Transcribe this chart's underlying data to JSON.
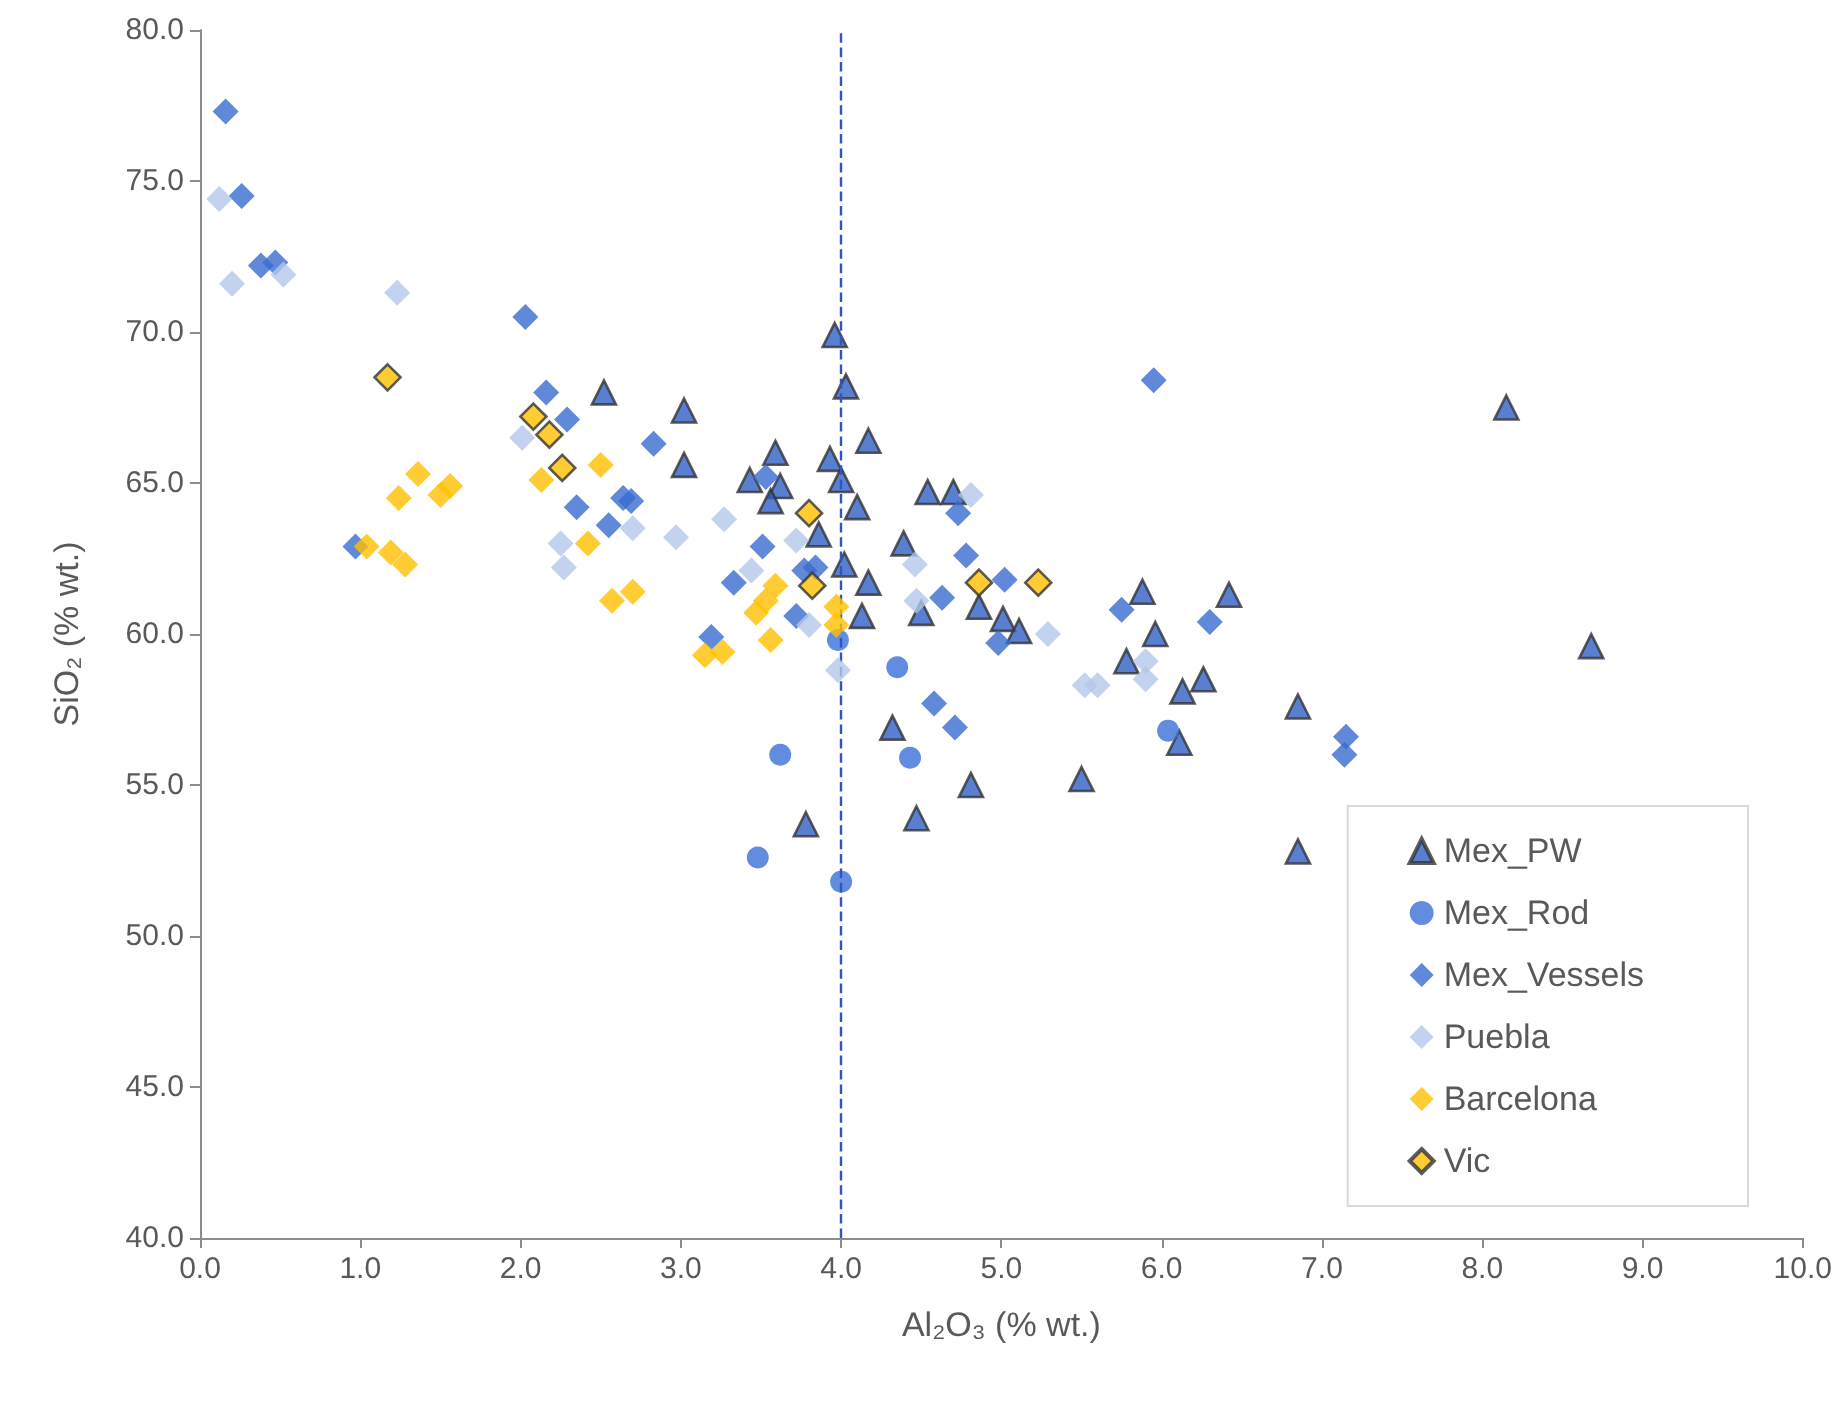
{
  "chart_data": {
    "type": "scatter",
    "xlabel": "Al₂O₃ (% wt.)",
    "ylabel": "SiO₂ (% wt.)",
    "xlim": [
      0,
      10
    ],
    "ylim": [
      40,
      80
    ],
    "xticks": [
      {
        "value": 0,
        "label": "0.0"
      },
      {
        "value": 1,
        "label": "1.0"
      },
      {
        "value": 2,
        "label": "2.0"
      },
      {
        "value": 3,
        "label": "3.0"
      },
      {
        "value": 4,
        "label": "4.0"
      },
      {
        "value": 5,
        "label": "5.0"
      },
      {
        "value": 6,
        "label": "6.0"
      },
      {
        "value": 7,
        "label": "7.0"
      },
      {
        "value": 8,
        "label": "8.0"
      },
      {
        "value": 9,
        "label": "9.0"
      },
      {
        "value": 10,
        "label": "10.0"
      }
    ],
    "yticks": [
      {
        "value": 40,
        "label": "40.0"
      },
      {
        "value": 45,
        "label": "45.0"
      },
      {
        "value": 50,
        "label": "50.0"
      },
      {
        "value": 55,
        "label": "55.0"
      },
      {
        "value": 60,
        "label": "60.0"
      },
      {
        "value": 65,
        "label": "65.0"
      },
      {
        "value": 70,
        "label": "70.0"
      },
      {
        "value": 75,
        "label": "75.0"
      },
      {
        "value": 80,
        "label": "80.0"
      }
    ],
    "grid": false,
    "legend": "bottom right",
    "ref_lines": [
      {
        "axis": "x",
        "value": 4,
        "color": "#2f55c4",
        "line_style": "dashed"
      }
    ],
    "series": [
      {
        "name": "Mex_PW",
        "color": "#2f5fc4",
        "marker": "triangle",
        "x": [
          3.96,
          4.03,
          4.17,
          2.52,
          3.02,
          3.02,
          3.59,
          3.43,
          3.62,
          3.93,
          3.56,
          4.0,
          4.1,
          3.86,
          4.54,
          4.7,
          4.39,
          4.02,
          4.17,
          4.13,
          4.5,
          4.86,
          5.01,
          5.11,
          5.78,
          4.32,
          4.81,
          4.47,
          3.78,
          5.5,
          5.88,
          6.42,
          5.96,
          6.13,
          6.26,
          6.85,
          6.11,
          8.15,
          8.68,
          6.85
        ],
        "values": [
          69.9,
          68.2,
          66.4,
          68.0,
          67.4,
          65.6,
          66.0,
          65.1,
          64.9,
          65.8,
          64.4,
          65.1,
          64.2,
          63.3,
          64.7,
          64.7,
          63.0,
          62.3,
          61.7,
          60.6,
          60.7,
          60.9,
          60.5,
          60.1,
          59.1,
          56.9,
          55.0,
          53.9,
          53.7,
          55.2,
          61.4,
          61.3,
          60.0,
          58.1,
          58.5,
          57.6,
          56.4,
          67.5,
          59.6,
          52.8
        ]
      },
      {
        "name": "Mex_Rod",
        "color": "#3a6fd8",
        "marker": "circle",
        "x": [
          3.98,
          4.35,
          3.62,
          4.43,
          3.48,
          4.0,
          6.04
        ],
        "values": [
          59.8,
          58.9,
          56.0,
          55.9,
          52.6,
          51.8,
          56.8
        ]
      },
      {
        "name": "Mex_Vessels",
        "color": "#3a6bd0",
        "marker": "diamond",
        "x": [
          0.16,
          0.26,
          0.38,
          0.47,
          2.03,
          2.16,
          2.29,
          2.83,
          2.35,
          2.55,
          2.64,
          2.69,
          0.97,
          3.53,
          3.51,
          3.33,
          3.84,
          3.77,
          4.73,
          4.78,
          5.02,
          4.63,
          4.98,
          3.19,
          3.72,
          5.75,
          4.58,
          4.71,
          5.95,
          6.3,
          7.15,
          7.14
        ],
        "values": [
          77.3,
          74.5,
          72.2,
          72.3,
          70.5,
          68.0,
          67.1,
          66.3,
          64.2,
          63.6,
          64.5,
          64.4,
          62.9,
          65.2,
          62.9,
          61.7,
          62.2,
          62.1,
          64.0,
          62.6,
          61.8,
          61.2,
          59.7,
          59.9,
          60.6,
          60.8,
          57.7,
          56.9,
          68.4,
          60.4,
          56.6,
          56.0
        ]
      },
      {
        "name": "Puebla",
        "color": "#b4c7ea",
        "marker": "diamond",
        "x": [
          0.12,
          0.2,
          0.52,
          1.23,
          2.01,
          2.25,
          2.27,
          2.7,
          2.97,
          3.27,
          3.72,
          3.44,
          3.8,
          3.98,
          4.46,
          4.47,
          4.81,
          5.29,
          5.52,
          5.6,
          5.9,
          5.9
        ],
        "values": [
          74.4,
          71.6,
          71.9,
          71.3,
          66.5,
          63.0,
          62.2,
          63.5,
          63.2,
          63.8,
          63.1,
          62.1,
          60.3,
          58.8,
          62.3,
          61.1,
          64.6,
          60.0,
          58.3,
          58.3,
          59.1,
          58.5
        ]
      },
      {
        "name": "Barcelona",
        "color": "#ffc000",
        "marker": "diamond",
        "x": [
          1.04,
          1.19,
          1.28,
          1.24,
          1.36,
          1.5,
          1.56,
          2.13,
          2.5,
          2.42,
          2.57,
          2.7,
          3.15,
          3.26,
          3.56,
          3.47,
          3.53,
          3.59,
          3.97,
          3.97
        ],
        "values": [
          62.9,
          62.7,
          62.3,
          64.5,
          65.3,
          64.6,
          64.9,
          65.1,
          65.6,
          63.0,
          61.1,
          61.4,
          59.3,
          59.4,
          59.8,
          60.7,
          61.1,
          61.6,
          60.9,
          60.3
        ]
      },
      {
        "name": "Vic",
        "color": "#ffc000",
        "marker": "diamond",
        "x": [
          1.17,
          2.08,
          2.18,
          2.26,
          3.8,
          3.82,
          4.86,
          5.23
        ],
        "values": [
          68.5,
          67.2,
          66.6,
          65.5,
          64.0,
          61.6,
          61.7,
          61.7
        ]
      }
    ]
  }
}
